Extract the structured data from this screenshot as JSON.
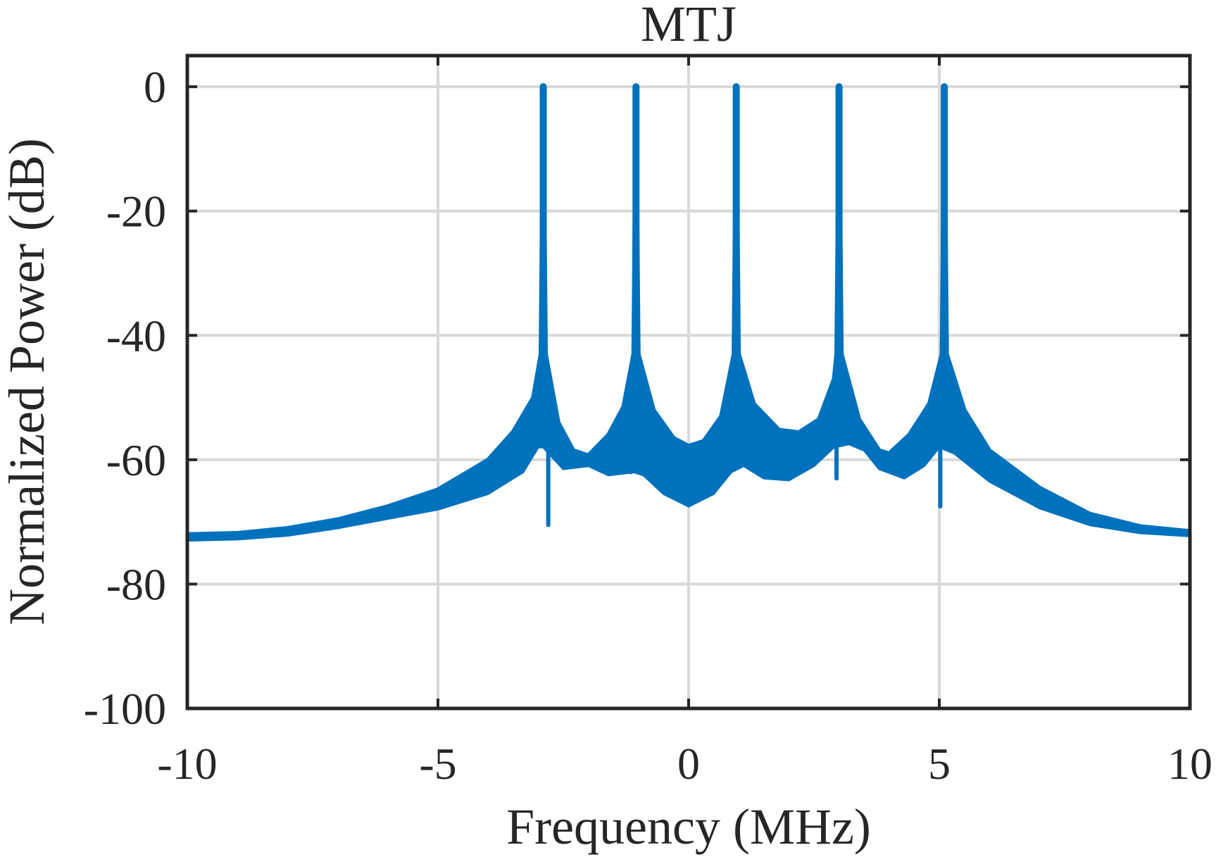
{
  "chart_data": {
    "type": "line",
    "title": "MTJ",
    "xlabel": "Frequency (MHz)",
    "ylabel": "Normalized Power (dB)",
    "xlim": [
      -10,
      10
    ],
    "ylim": [
      -100,
      5
    ],
    "xticks": [
      -10,
      -5,
      0,
      5,
      10
    ],
    "xtick_labels": [
      "-10",
      "-5",
      "0",
      "5",
      "10"
    ],
    "yticks": [
      -100,
      -80,
      -60,
      -40,
      -20,
      0
    ],
    "ytick_labels": [
      "-100",
      "-80",
      "-60",
      "-40",
      "-20",
      "0"
    ],
    "grid": true,
    "legend": "none",
    "line_color": "#0072BD",
    "series": [
      {
        "name": "MTJ spectrum",
        "peaks": [
          {
            "f": -2.9,
            "power": 0
          },
          {
            "f": -1.05,
            "power": 0
          },
          {
            "f": 0.95,
            "power": 0
          },
          {
            "f": 3.0,
            "power": 0
          },
          {
            "f": 5.1,
            "power": 0
          }
        ],
        "upper_envelope": [
          [
            -10,
            -72
          ],
          [
            -9,
            -71.8
          ],
          [
            -8,
            -71
          ],
          [
            -7,
            -69.6
          ],
          [
            -6,
            -67.5
          ],
          [
            -5,
            -64.8
          ],
          [
            -4,
            -60
          ],
          [
            -3.5,
            -55.5
          ],
          [
            -3.1,
            -50
          ],
          [
            -2.95,
            -43
          ],
          [
            -2.9,
            0
          ],
          [
            -2.85,
            -43
          ],
          [
            -2.6,
            -54
          ],
          [
            -2.3,
            -58.5
          ],
          [
            -2.0,
            -59.3
          ],
          [
            -1.6,
            -56
          ],
          [
            -1.3,
            -51.5
          ],
          [
            -1.1,
            -43
          ],
          [
            -1.05,
            0
          ],
          [
            -1.0,
            -43
          ],
          [
            -0.7,
            -52
          ],
          [
            -0.3,
            -56.5
          ],
          [
            0.0,
            -57.8
          ],
          [
            0.3,
            -57
          ],
          [
            0.65,
            -53
          ],
          [
            0.9,
            -43
          ],
          [
            0.95,
            0
          ],
          [
            1.0,
            -43
          ],
          [
            1.3,
            -51
          ],
          [
            1.8,
            -55.2
          ],
          [
            2.2,
            -55.6
          ],
          [
            2.6,
            -53.5
          ],
          [
            2.9,
            -47
          ],
          [
            2.95,
            -43
          ],
          [
            3.0,
            0
          ],
          [
            3.05,
            -43
          ],
          [
            3.4,
            -53.5
          ],
          [
            3.8,
            -58.5
          ],
          [
            4.0,
            -59
          ],
          [
            4.4,
            -56
          ],
          [
            4.8,
            -51
          ],
          [
            5.05,
            -43
          ],
          [
            5.1,
            0
          ],
          [
            5.15,
            -43
          ],
          [
            5.5,
            -52
          ],
          [
            6,
            -58.5
          ],
          [
            7,
            -64.5
          ],
          [
            8,
            -68.7
          ],
          [
            9,
            -70.7
          ],
          [
            10,
            -71.5
          ]
        ],
        "lower_envelope": [
          [
            -10,
            -73
          ],
          [
            -9,
            -72.8
          ],
          [
            -8,
            -72.2
          ],
          [
            -7,
            -71
          ],
          [
            -6,
            -69.5
          ],
          [
            -5,
            -68
          ],
          [
            -4,
            -65.5
          ],
          [
            -3.3,
            -62
          ],
          [
            -3.0,
            -58
          ],
          [
            -2.9,
            -58
          ],
          [
            -2.5,
            -61.5
          ],
          [
            -2.0,
            -61
          ],
          [
            -1.6,
            -62.5
          ],
          [
            -1.1,
            -62
          ],
          [
            -0.9,
            -62.5
          ],
          [
            -0.5,
            -65.5
          ],
          [
            0.0,
            -67.5
          ],
          [
            0.5,
            -65.5
          ],
          [
            0.85,
            -62
          ],
          [
            1.1,
            -61
          ],
          [
            1.5,
            -63
          ],
          [
            2.0,
            -63.3
          ],
          [
            2.5,
            -61
          ],
          [
            2.9,
            -58
          ],
          [
            3.2,
            -57.5
          ],
          [
            3.5,
            -58.5
          ],
          [
            3.8,
            -61.5
          ],
          [
            4.3,
            -63
          ],
          [
            4.7,
            -61
          ],
          [
            5.0,
            -58
          ],
          [
            5.3,
            -59
          ],
          [
            6,
            -63.5
          ],
          [
            7,
            -67.8
          ],
          [
            8,
            -70.5
          ],
          [
            9,
            -71.8
          ],
          [
            10,
            -72.3
          ]
        ],
        "dips": [
          {
            "f": -2.8,
            "power": -70.5
          },
          {
            "f": -1.15,
            "power": -62
          },
          {
            "f": 0.85,
            "power": -60.5
          },
          {
            "f": 2.95,
            "power": -63
          },
          {
            "f": 5.02,
            "power": -67.5
          }
        ]
      }
    ]
  }
}
